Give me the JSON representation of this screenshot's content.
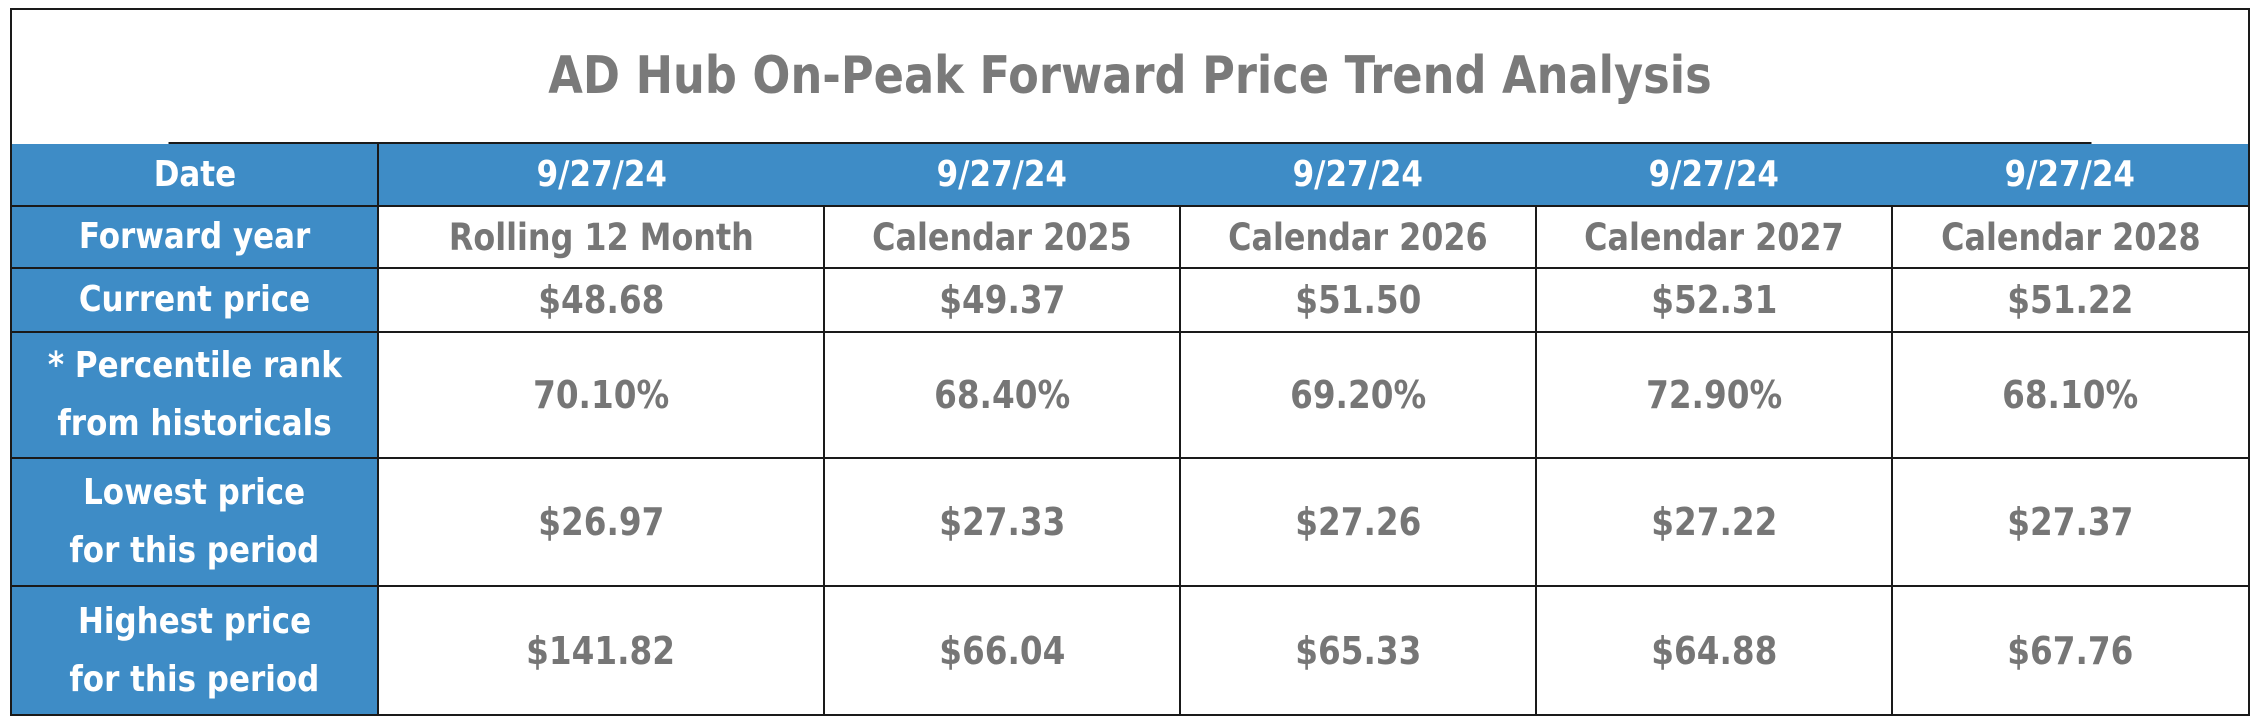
{
  "title": "AD Hub On-Peak Forward Price Trend Analysis",
  "colors": {
    "header_blue": "#3e8cc6",
    "value_gray": "#767676",
    "border": "#1a1a1a"
  },
  "table": {
    "row_labels": {
      "date": "Date",
      "forward_year": "Forward year",
      "current_price": "Current price",
      "percentile_line1": "* Percentile rank",
      "percentile_line2": "from historicals",
      "lowest_line1": "Lowest price",
      "lowest_line2": "for this period",
      "highest_line1": "Highest price",
      "highest_line2": "for this period"
    },
    "dates": [
      "9/27/24",
      "9/27/24",
      "9/27/24",
      "9/27/24",
      "9/27/24"
    ],
    "forward_years": [
      "Rolling 12 Month",
      "Calendar 2025",
      "Calendar 2026",
      "Calendar 2027",
      "Calendar 2028"
    ],
    "current_prices": [
      "$48.68",
      "$49.37",
      "$51.50",
      "$52.31",
      "$51.22"
    ],
    "percentile_ranks": [
      "70.10%",
      "68.40%",
      "69.20%",
      "72.90%",
      "68.10%"
    ],
    "lowest_prices": [
      "$26.97",
      "$27.33",
      "$27.26",
      "$27.22",
      "$27.37"
    ],
    "highest_prices": [
      "$141.82",
      "$66.04",
      "$65.33",
      "$64.88",
      "$67.76"
    ]
  }
}
